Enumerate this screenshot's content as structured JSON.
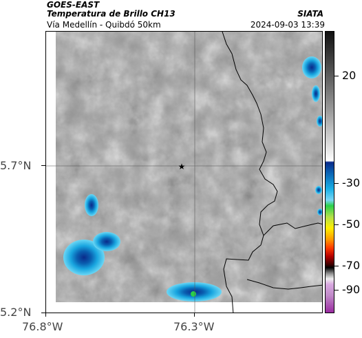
{
  "header": {
    "satellite": "GOES-EAST",
    "product": "Temperatura de Brillo CH13",
    "route": "Vía Medellín - Quibdó 50km",
    "org": "SIATA",
    "datetime": "2024-09-03 13:39"
  },
  "axes": {
    "lat_ticks": [
      "5.7°N",
      "5.2°N"
    ],
    "lon_ticks": [
      "76.8°W",
      "76.3°W"
    ]
  },
  "colorbar": {
    "labels": [
      "20",
      "-30",
      "-50",
      "-70",
      "-90"
    ],
    "colors": [
      "#111111",
      "#ffffff",
      "#0a2a8a",
      "#19b0e6",
      "#2ad04a",
      "#ffee00",
      "#ff6a00",
      "#b40000",
      "#000000",
      "#c08ac8",
      "#9a2aa0"
    ]
  },
  "map": {
    "marker": "star-marker"
  }
}
